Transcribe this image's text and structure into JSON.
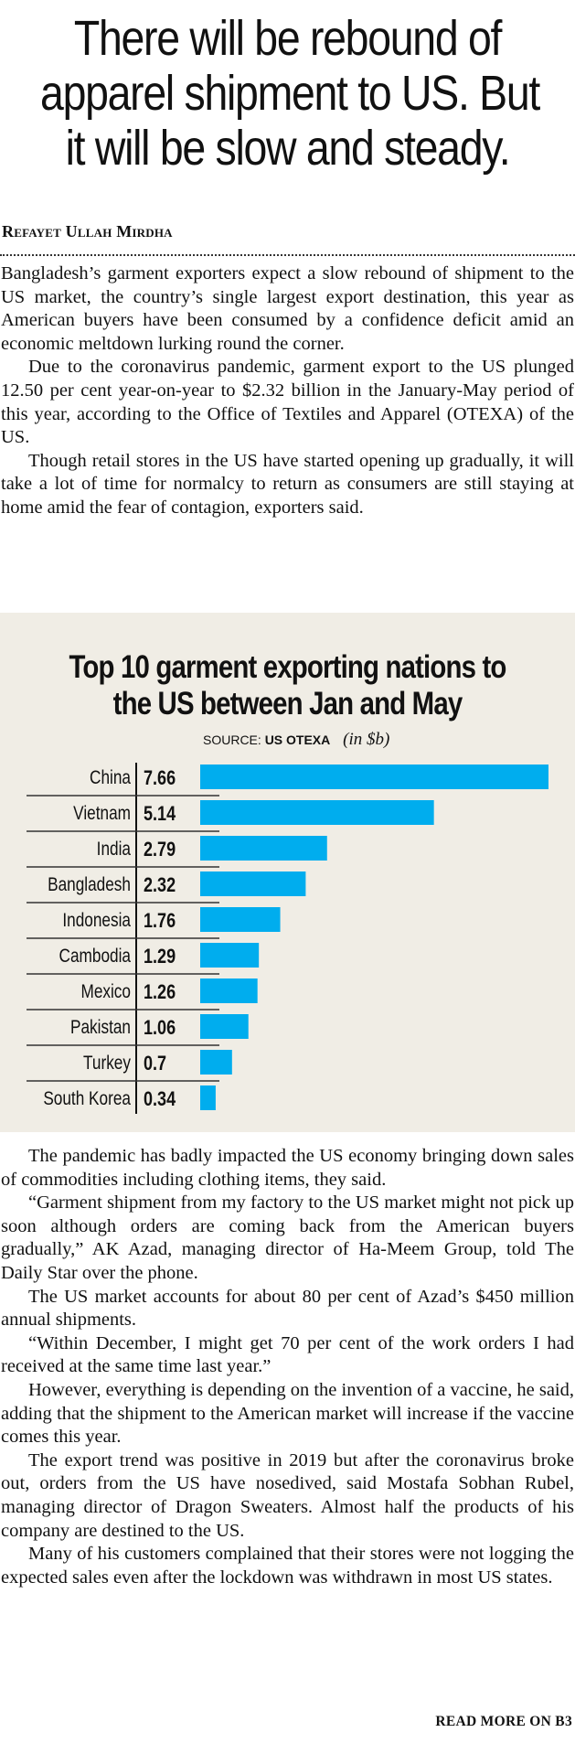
{
  "article": {
    "headline_lines": [
      "There will be rebound of",
      "apparel shipment to US. But",
      "it will be slow and steady."
    ],
    "byline": "Refayet Ullah Mirdha",
    "intro_paragraphs": [
      "Bangladesh’s garment exporters expect a slow rebound of shipment to the US market, the country’s single largest export destination, this year as American buyers have been consumed by a confidence deficit amid an economic meltdown lurking round the corner.",
      "Due to the coronavirus pandemic, garment export to the US plunged 12.50 per cent year-on-year to $2.32 billion in the January-May period of this year, according to the Office of Textiles and Apparel (OTEXA) of the US.",
      "Though retail stores in the US have started opening up gradually, it will take a lot of time for normalcy to return as consumers are still staying at home amid the fear of contagion, exporters said."
    ],
    "body_paragraphs": [
      "The pandemic has badly impacted the US economy bringing down sales of commodities including clothing items, they said.",
      "“Garment shipment from my factory to the US market might not pick up soon although orders are coming back from the American buyers gradually,” AK Azad, managing director of Ha-Meem Group, told The Daily Star over the phone.",
      "The US market accounts for about 80 per cent of Azad’s $450 million annual shipments.",
      "“Within December, I might get 70 per cent of the work orders I had received at the same time last year.”",
      "However, everything is depending on the invention of a vaccine, he said, adding that the shipment to the American market will increase if the vaccine comes this year.",
      "The export trend was positive in 2019 but after the coronavirus broke out, orders from the US have nosedived, said Mostafa Sobhan Rubel, managing director of Dragon Sweaters. Almost half the products of his company are destined to the US.",
      "Many of his customers complained that their stores were not logging the expected sales even after the lockdown was withdrawn in most US states."
    ],
    "read_more": "READ MORE ON B3"
  },
  "colors": {
    "bar": "#00adee",
    "panel_background": "#f0ede5",
    "text": "#111111"
  },
  "chart_data": {
    "type": "bar",
    "orientation": "horizontal",
    "title_lines": [
      "Top 10 garment exporting nations to",
      "the US between Jan and May"
    ],
    "source_label": "SOURCE:",
    "source_name": "US OTEXA",
    "unit": "(in $b)",
    "xlabel": "",
    "ylabel": "",
    "categories": [
      "China",
      "Vietnam",
      "India",
      "Bangladesh",
      "Indonesia",
      "Cambodia",
      "Mexico",
      "Pakistan",
      "Turkey",
      "South Korea"
    ],
    "values": [
      7.66,
      5.14,
      2.79,
      2.32,
      1.76,
      1.29,
      1.26,
      1.06,
      0.7,
      0.34
    ],
    "value_labels": [
      "7.66",
      "5.14",
      "2.79",
      "2.32",
      "1.76",
      "1.29",
      "1.26",
      "1.06",
      "0.7",
      "0.34"
    ],
    "xlim": [
      0,
      7.66
    ],
    "grid": false,
    "legend": "none"
  }
}
